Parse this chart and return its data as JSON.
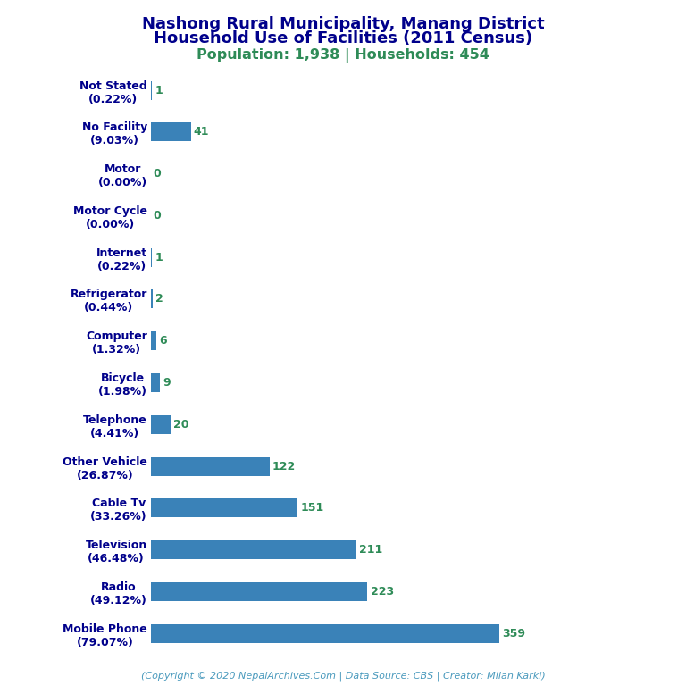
{
  "title_line1": "Nashong Rural Municipality, Manang District",
  "title_line2": "Household Use of Facilities (2011 Census)",
  "subtitle": "Population: 1,938 | Households: 454",
  "footer": "(Copyright © 2020 NepalArchives.Com | Data Source: CBS | Creator: Milan Karki)",
  "categories": [
    "Not Stated\n(0.22%)",
    "No Facility\n(9.03%)",
    "Motor\n(0.00%)",
    "Motor Cycle\n(0.00%)",
    "Internet\n(0.22%)",
    "Refrigerator\n(0.44%)",
    "Computer\n(1.32%)",
    "Bicycle\n(1.98%)",
    "Telephone\n(4.41%)",
    "Other Vehicle\n(26.87%)",
    "Cable Tv\n(33.26%)",
    "Television\n(46.48%)",
    "Radio\n(49.12%)",
    "Mobile Phone\n(79.07%)"
  ],
  "values": [
    1,
    41,
    0,
    0,
    1,
    2,
    6,
    9,
    20,
    122,
    151,
    211,
    223,
    359
  ],
  "bar_color": "#3a82b8",
  "label_color": "#2e8b57",
  "title_color": "#00008b",
  "subtitle_color": "#2e8b57",
  "footer_color": "#4a9abd",
  "background_color": "#ffffff",
  "xlim": [
    0,
    530
  ],
  "title_fontsize": 13,
  "subtitle_fontsize": 11.5,
  "label_fontsize": 9,
  "value_fontsize": 9,
  "footer_fontsize": 8,
  "bar_height": 0.45
}
